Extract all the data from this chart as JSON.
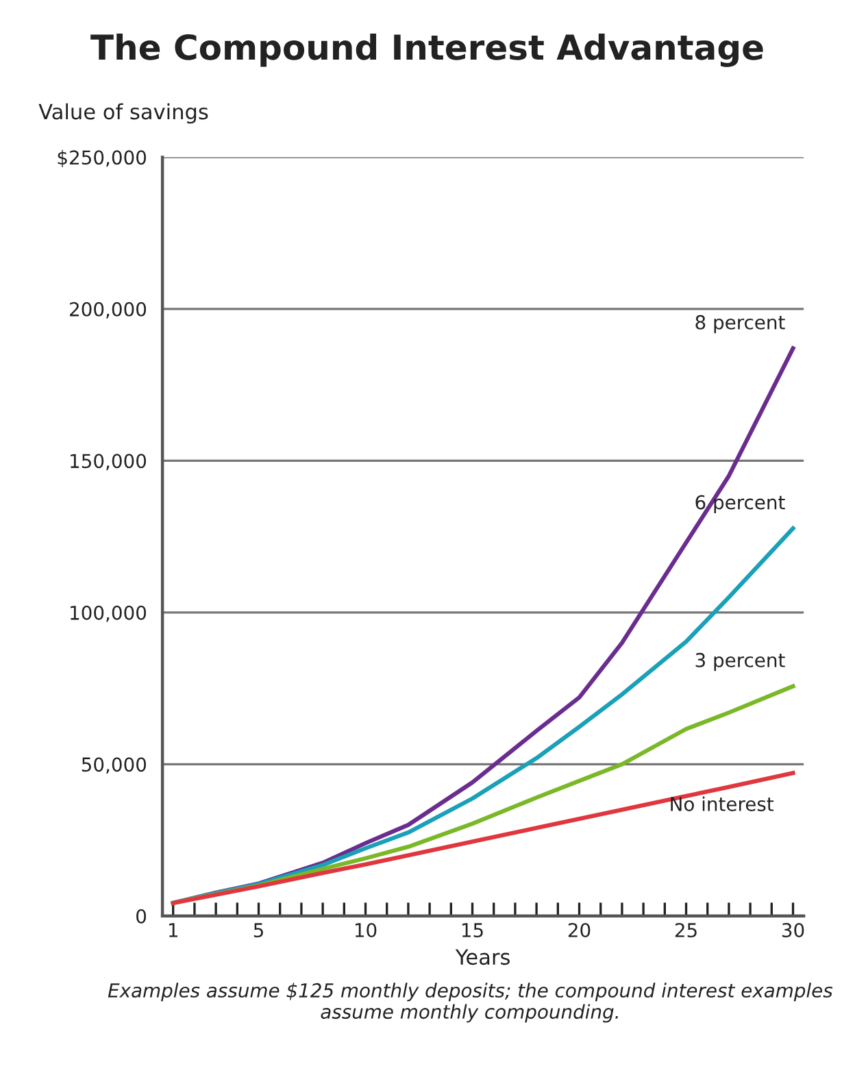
{
  "chart_data": {
    "type": "line",
    "title": "The Compound Interest Advantage",
    "ylabel": "Value of savings",
    "xlabel": "Years",
    "x": [
      1,
      3,
      5,
      8,
      10,
      12,
      15,
      18,
      20,
      22,
      25,
      27,
      30
    ],
    "series": [
      {
        "name": "8 percent",
        "color": "#6a2d8f",
        "values": [
          4300,
          7700,
          10700,
          17500,
          24000,
          30000,
          44000,
          61000,
          72000,
          90000,
          123000,
          145000,
          187000
        ]
      },
      {
        "name": "6 percent",
        "color": "#1aa0b8",
        "values": [
          4300,
          7500,
          10500,
          16800,
          22300,
          27500,
          38700,
          52000,
          62300,
          73000,
          90400,
          105000,
          127700
        ]
      },
      {
        "name": "3 percent",
        "color": "#7ab828",
        "values": [
          4300,
          7200,
          10000,
          15500,
          19000,
          22800,
          30400,
          39000,
          44500,
          50000,
          61600,
          67000,
          75700
        ]
      },
      {
        "name": "No interest",
        "color": "#e0373f",
        "values": [
          4250,
          7000,
          9800,
          14200,
          17000,
          20000,
          24500,
          29000,
          32000,
          35000,
          39500,
          42500,
          47100
        ]
      }
    ],
    "xlim": [
      0.5,
      30.5
    ],
    "ylim": [
      0,
      250000
    ],
    "xticks": [
      1,
      {
        "value": 2,
        "label": null
      },
      {
        "value": 3,
        "label": null
      },
      {
        "value": 4,
        "label": null
      },
      5,
      {
        "value": 6,
        "label": null
      },
      {
        "value": 7,
        "label": null
      },
      {
        "value": 8,
        "label": null
      },
      {
        "value": 9,
        "label": null
      },
      10,
      {
        "value": 11,
        "label": null
      },
      {
        "value": 12,
        "label": null
      },
      {
        "value": 13,
        "label": null
      },
      {
        "value": 14,
        "label": null
      },
      15,
      {
        "value": 16,
        "label": null
      },
      {
        "value": 17,
        "label": null
      },
      {
        "value": 18,
        "label": null
      },
      {
        "value": 19,
        "label": null
      },
      20,
      {
        "value": 21,
        "label": null
      },
      {
        "value": 22,
        "label": null
      },
      {
        "value": 23,
        "label": null
      },
      {
        "value": 24,
        "label": null
      },
      25,
      {
        "value": 26,
        "label": null
      },
      {
        "value": 27,
        "label": null
      },
      {
        "value": 28,
        "label": null
      },
      {
        "value": 29,
        "label": null
      },
      30
    ],
    "yticks": [
      {
        "value": 0,
        "label": "0"
      },
      {
        "value": 50000,
        "label": "50,000"
      },
      {
        "value": 100000,
        "label": "100,000"
      },
      {
        "value": 150000,
        "label": "150,000"
      },
      {
        "value": 200000,
        "label": "200,000"
      },
      {
        "value": 250000,
        "label": "$250,000"
      }
    ],
    "grid": "y",
    "legend": false,
    "marker": "none",
    "line_style": "solid",
    "annotations": [
      "Examples assume $125 monthly deposits; the compound interest examples assume monthly compounding."
    ]
  }
}
